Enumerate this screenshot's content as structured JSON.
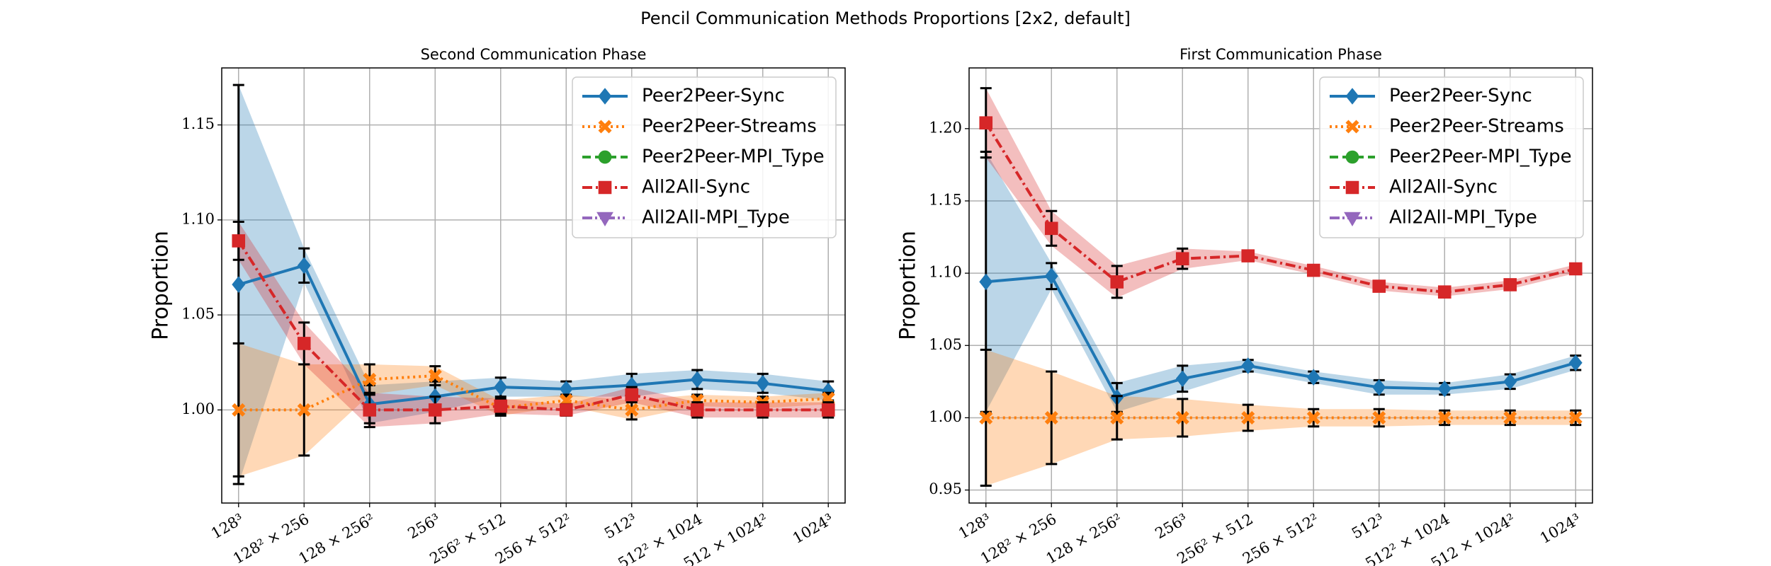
{
  "title": "Pencil Communication Methods Proportions [2x2, default]",
  "chart_data": [
    {
      "type": "line",
      "title": "Second Communication Phase",
      "ylabel": "Proportion",
      "categories": [
        "128³",
        "128² × 256",
        "128 × 256²",
        "256³",
        "256² × 512",
        "256 × 512²",
        "512³",
        "512² × 1024",
        "512 × 1024²",
        "1024³"
      ],
      "ylim": [
        0.951,
        1.18
      ],
      "yticks": [
        1.0,
        1.05,
        1.1,
        1.15
      ],
      "ytick_labels": [
        "1.00",
        "1.05",
        "1.10",
        "1.15"
      ],
      "grid": true,
      "legend": "upper right",
      "series": [
        {
          "name": "Peer2Peer-Sync",
          "color": "#1f77b4",
          "marker": "diamond",
          "linestyle": "solid",
          "values": [
            1.066,
            1.076,
            1.003,
            1.007,
            1.012,
            1.011,
            1.013,
            1.016,
            1.014,
            1.01
          ],
          "errors": [
            0.105,
            0.009,
            0.01,
            0.008,
            0.005,
            0.004,
            0.006,
            0.005,
            0.005,
            0.005
          ]
        },
        {
          "name": "Peer2Peer-Streams",
          "color": "#ff7f0e",
          "marker": "x",
          "linestyle": "dotted",
          "values": [
            1.0,
            1.0,
            1.016,
            1.018,
            1.001,
            1.005,
            1.0,
            1.005,
            1.004,
            1.006
          ],
          "errors": [
            0.035,
            0.024,
            0.008,
            0.005,
            0.004,
            0.003,
            0.005,
            0.003,
            0.003,
            0.003
          ]
        },
        {
          "name": "Peer2Peer-MPI_Type",
          "color": "#2ca02c",
          "marker": "circle",
          "linestyle": "dashed",
          "values": [
            null,
            null,
            null,
            null,
            null,
            null,
            null,
            null,
            null,
            null
          ],
          "errors": [
            null,
            null,
            null,
            null,
            null,
            null,
            null,
            null,
            null,
            null
          ]
        },
        {
          "name": "All2All-Sync",
          "color": "#d62728",
          "marker": "square",
          "linestyle": "dashdot",
          "values": [
            1.089,
            1.035,
            1.0,
            1.0,
            1.002,
            1.0,
            1.008,
            1.0,
            1.0,
            1.0
          ],
          "errors": [
            0.01,
            0.011,
            0.009,
            0.007,
            0.004,
            0.003,
            0.004,
            0.004,
            0.004,
            0.004
          ]
        },
        {
          "name": "All2All-MPI_Type",
          "color": "#9467bd",
          "marker": "triangle",
          "linestyle": "dashdotdot",
          "values": [
            null,
            null,
            null,
            null,
            null,
            null,
            null,
            null,
            null,
            null
          ],
          "errors": [
            null,
            null,
            null,
            null,
            null,
            null,
            null,
            null,
            null,
            null
          ]
        }
      ]
    },
    {
      "type": "line",
      "title": "First Communication Phase",
      "ylabel": "Proportion",
      "categories": [
        "128³",
        "128² × 256",
        "128 × 256²",
        "256³",
        "256² × 512",
        "256 × 512²",
        "512³",
        "512² × 1024",
        "512 × 1024²",
        "1024³"
      ],
      "ylim": [
        0.941,
        1.242
      ],
      "yticks": [
        0.95,
        1.0,
        1.05,
        1.1,
        1.15,
        1.2
      ],
      "ytick_labels": [
        "0.95",
        "1.00",
        "1.05",
        "1.10",
        "1.15",
        "1.20"
      ],
      "grid": true,
      "legend": "upper right",
      "series": [
        {
          "name": "Peer2Peer-Sync",
          "color": "#1f77b4",
          "marker": "diamond",
          "linestyle": "solid",
          "values": [
            1.094,
            1.098,
            1.014,
            1.027,
            1.036,
            1.028,
            1.021,
            1.02,
            1.025,
            1.038
          ],
          "errors": [
            0.09,
            0.009,
            0.01,
            0.009,
            0.004,
            0.004,
            0.005,
            0.004,
            0.005,
            0.005
          ]
        },
        {
          "name": "Peer2Peer-Streams",
          "color": "#ff7f0e",
          "marker": "x",
          "linestyle": "dotted",
          "values": [
            1.0,
            1.0,
            1.0,
            1.0,
            1.0,
            1.0,
            1.0,
            1.0,
            1.0,
            1.0
          ],
          "errors": [
            0.047,
            0.032,
            0.015,
            0.013,
            0.009,
            0.006,
            0.006,
            0.005,
            0.005,
            0.005
          ]
        },
        {
          "name": "Peer2Peer-MPI_Type",
          "color": "#2ca02c",
          "marker": "circle",
          "linestyle": "dashed",
          "values": [
            null,
            null,
            null,
            null,
            null,
            null,
            null,
            null,
            null,
            null
          ],
          "errors": [
            null,
            null,
            null,
            null,
            null,
            null,
            null,
            null,
            null,
            null
          ]
        },
        {
          "name": "All2All-Sync",
          "color": "#d62728",
          "marker": "square",
          "linestyle": "dashdot",
          "values": [
            1.204,
            1.131,
            1.094,
            1.11,
            1.112,
            1.102,
            1.091,
            1.087,
            1.092,
            1.103
          ],
          "errors": [
            0.024,
            0.012,
            0.011,
            0.007,
            0.003,
            0.003,
            0.003,
            0.003,
            0.003,
            0.003
          ]
        },
        {
          "name": "All2All-MPI_Type",
          "color": "#9467bd",
          "marker": "triangle",
          "linestyle": "dashdotdot",
          "values": [
            null,
            null,
            null,
            null,
            null,
            null,
            null,
            null,
            null,
            null
          ],
          "errors": [
            null,
            null,
            null,
            null,
            null,
            null,
            null,
            null,
            null,
            null
          ]
        }
      ]
    }
  ]
}
